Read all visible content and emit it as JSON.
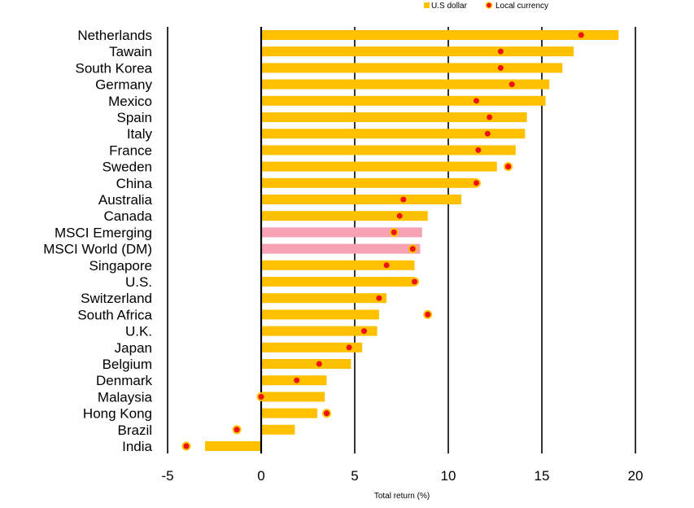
{
  "chart_data": {
    "type": "bar",
    "xlabel": "Total return (%)",
    "xlim": [
      -5,
      20
    ],
    "xticks": [
      -5,
      0,
      5,
      10,
      15,
      20
    ],
    "grid": "vertical",
    "legend_position": "top-right",
    "colors": {
      "usd_bar": "#FFC000",
      "msci_bar": "#F7A1B5",
      "local_dot_fill": "#EE1111",
      "local_dot_stroke": "#FFC000",
      "gridline": "#000000"
    },
    "categories": [
      "Netherlands",
      "Tawain",
      "South Korea",
      "Germany",
      "Mexico",
      "Spain",
      "Italy",
      "France",
      "Sweden",
      "China",
      "Australia",
      "Canada",
      "MSCI Emerging",
      "MSCI World (DM)",
      "Singapore",
      "U.S.",
      "Switzerland",
      "South Africa",
      "U.K.",
      "Japan",
      "Belgium",
      "Denmark",
      "Malaysia",
      "Hong Kong",
      "Brazil",
      "India"
    ],
    "highlighted_categories": [
      "MSCI Emerging",
      "MSCI World (DM)"
    ],
    "series": [
      {
        "name": "U.S dollar",
        "kind": "bar",
        "values": [
          19.1,
          16.7,
          16.1,
          15.4,
          15.2,
          14.2,
          14.1,
          13.6,
          12.6,
          11.5,
          10.7,
          8.9,
          8.6,
          8.5,
          8.2,
          8.2,
          6.7,
          6.3,
          6.2,
          5.4,
          4.8,
          3.5,
          3.4,
          3.0,
          1.8,
          -3.0
        ]
      },
      {
        "name": "Local currency",
        "kind": "dot",
        "values": [
          17.1,
          12.8,
          12.8,
          13.4,
          11.5,
          12.2,
          12.1,
          11.6,
          13.2,
          11.5,
          7.6,
          7.4,
          7.1,
          8.1,
          6.7,
          8.2,
          6.3,
          8.9,
          5.5,
          4.7,
          3.1,
          1.9,
          0.0,
          3.5,
          -1.3,
          -4.0
        ]
      }
    ]
  }
}
